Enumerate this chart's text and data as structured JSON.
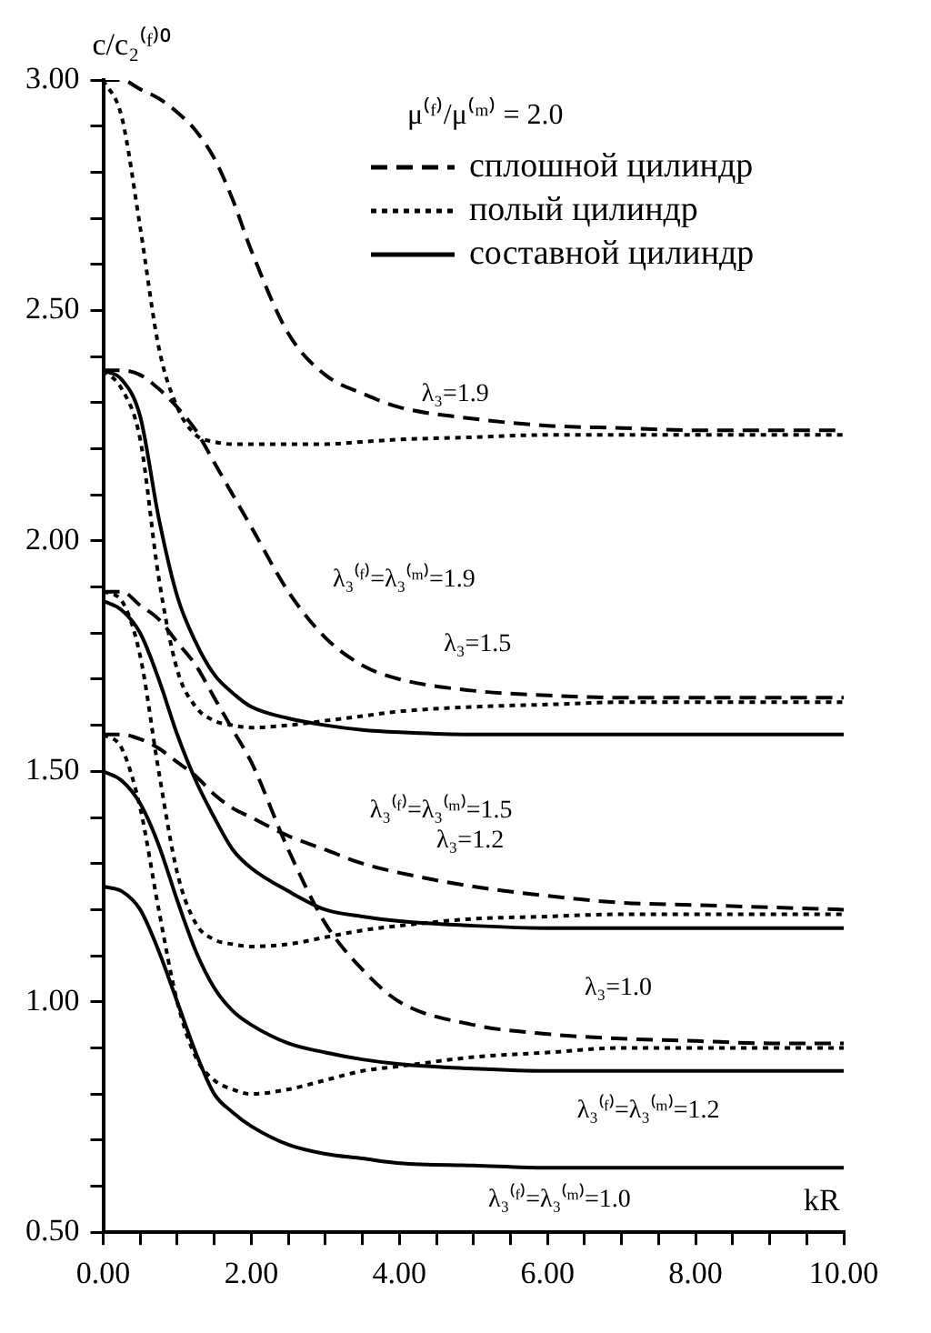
{
  "chart_data": {
    "type": "line",
    "xlabel": "kR",
    "ylabel": "c/c₂⁽ᶠ⁾⁰",
    "legend_title": "μ⁽ᶠ⁾/μ⁽ᵐ⁾ = 2.0",
    "legend": "top right",
    "grid": false,
    "marker": "none",
    "x": [
      0,
      0.25,
      0.5,
      0.75,
      1,
      1.25,
      1.5,
      1.75,
      2,
      2.5,
      3,
      3.5,
      4,
      5,
      6,
      7,
      8,
      9,
      10
    ],
    "xlim": [
      0,
      10
    ],
    "ylim": [
      0.5,
      3
    ],
    "xticks": [
      {
        "value": 0,
        "label": "0.00"
      },
      {
        "value": 0.5,
        "label": null
      },
      {
        "value": 1,
        "label": null
      },
      {
        "value": 1.5,
        "label": null
      },
      {
        "value": 2,
        "label": "2.00"
      },
      {
        "value": 2.5,
        "label": null
      },
      {
        "value": 3,
        "label": null
      },
      {
        "value": 3.5,
        "label": null
      },
      {
        "value": 4,
        "label": "4.00"
      },
      {
        "value": 4.5,
        "label": null
      },
      {
        "value": 5,
        "label": null
      },
      {
        "value": 5.5,
        "label": null
      },
      {
        "value": 6,
        "label": "6.00"
      },
      {
        "value": 6.5,
        "label": null
      },
      {
        "value": 7,
        "label": null
      },
      {
        "value": 7.5,
        "label": null
      },
      {
        "value": 8,
        "label": "8.00"
      },
      {
        "value": 8.5,
        "label": null
      },
      {
        "value": 9,
        "label": null
      },
      {
        "value": 9.5,
        "label": null
      },
      {
        "value": 10,
        "label": "10.00"
      }
    ],
    "yticks": [
      {
        "value": 0.5,
        "label": "0.50"
      },
      {
        "value": 0.6,
        "label": null
      },
      {
        "value": 0.7,
        "label": null
      },
      {
        "value": 0.8,
        "label": null
      },
      {
        "value": 0.9,
        "label": null
      },
      {
        "value": 1,
        "label": "1.00"
      },
      {
        "value": 1.1,
        "label": null
      },
      {
        "value": 1.2,
        "label": null
      },
      {
        "value": 1.3,
        "label": null
      },
      {
        "value": 1.4,
        "label": null
      },
      {
        "value": 1.5,
        "label": "1.50"
      },
      {
        "value": 1.6,
        "label": null
      },
      {
        "value": 1.7,
        "label": null
      },
      {
        "value": 1.8,
        "label": null
      },
      {
        "value": 1.9,
        "label": null
      },
      {
        "value": 2,
        "label": "2.00"
      },
      {
        "value": 2.1,
        "label": null
      },
      {
        "value": 2.2,
        "label": null
      },
      {
        "value": 2.3,
        "label": null
      },
      {
        "value": 2.4,
        "label": null
      },
      {
        "value": 2.5,
        "label": "2.50"
      },
      {
        "value": 2.6,
        "label": null
      },
      {
        "value": 2.7,
        "label": null
      },
      {
        "value": 2.8,
        "label": null
      },
      {
        "value": 2.9,
        "label": null
      },
      {
        "value": 3,
        "label": "3.00"
      }
    ],
    "series": [
      {
        "name": "сплошной цилиндр",
        "color": "#000000",
        "line_style": "dashed",
        "values": [
          3.0,
          3.0,
          2.98,
          2.96,
          2.93,
          2.89,
          2.83,
          2.74,
          2.63,
          2.45,
          2.36,
          2.32,
          2.29,
          2.265,
          2.25,
          2.245,
          2.24,
          2.24,
          2.24
        ]
      },
      {
        "name": "полый цилиндр",
        "color": "#000000",
        "line_style": "dotted",
        "values": [
          3.0,
          2.92,
          2.68,
          2.42,
          2.29,
          2.23,
          2.215,
          2.21,
          2.21,
          2.21,
          2.21,
          2.215,
          2.22,
          2.225,
          2.23,
          2.23,
          2.23,
          2.23,
          2.23
        ]
      },
      {
        "name": "составной цилиндр",
        "color": "#000000",
        "line_style": "solid",
        "values": [
          2.37,
          2.35,
          2.27,
          2.05,
          1.88,
          1.78,
          1.71,
          1.67,
          1.64,
          1.615,
          1.6,
          1.59,
          1.585,
          1.58,
          1.58,
          1.58,
          1.58,
          1.58,
          1.58
        ]
      },
      {
        "color": "#000000",
        "line_style": "dashed",
        "values": [
          2.37,
          2.37,
          2.36,
          2.33,
          2.29,
          2.24,
          2.17,
          2.1,
          2.03,
          1.89,
          1.79,
          1.73,
          1.7,
          1.675,
          1.665,
          1.66,
          1.66,
          1.66,
          1.66
        ]
      },
      {
        "color": "#000000",
        "line_style": "dotted",
        "values": [
          2.37,
          2.33,
          2.22,
          1.92,
          1.72,
          1.64,
          1.61,
          1.6,
          1.595,
          1.6,
          1.61,
          1.62,
          1.63,
          1.64,
          1.645,
          1.65,
          1.65,
          1.65,
          1.65
        ]
      },
      {
        "color": "#000000",
        "line_style": "solid",
        "values": [
          1.87,
          1.85,
          1.8,
          1.7,
          1.58,
          1.48,
          1.4,
          1.33,
          1.29,
          1.24,
          1.2,
          1.185,
          1.175,
          1.165,
          1.16,
          1.16,
          1.16,
          1.16,
          1.16
        ]
      },
      {
        "color": "#000000",
        "line_style": "dashed",
        "values": [
          1.89,
          1.89,
          1.86,
          1.83,
          1.78,
          1.73,
          1.66,
          1.59,
          1.52,
          1.33,
          1.17,
          1.07,
          1.0,
          0.95,
          0.93,
          0.92,
          0.915,
          0.91,
          0.91
        ]
      },
      {
        "color": "#000000",
        "line_style": "dotted",
        "values": [
          1.89,
          1.87,
          1.75,
          1.5,
          1.28,
          1.17,
          1.135,
          1.125,
          1.12,
          1.125,
          1.14,
          1.155,
          1.165,
          1.18,
          1.185,
          1.19,
          1.19,
          1.19,
          1.19
        ]
      },
      {
        "color": "#000000",
        "line_style": "solid",
        "values": [
          1.5,
          1.48,
          1.43,
          1.34,
          1.22,
          1.11,
          1.03,
          0.98,
          0.95,
          0.91,
          0.89,
          0.875,
          0.865,
          0.855,
          0.85,
          0.85,
          0.85,
          0.85,
          0.85
        ]
      },
      {
        "color": "#000000",
        "line_style": "dashed",
        "values": [
          1.58,
          1.58,
          1.57,
          1.55,
          1.52,
          1.49,
          1.45,
          1.42,
          1.4,
          1.36,
          1.33,
          1.3,
          1.28,
          1.25,
          1.23,
          1.215,
          1.21,
          1.205,
          1.2
        ]
      },
      {
        "color": "#000000",
        "line_style": "dotted",
        "values": [
          1.58,
          1.55,
          1.42,
          1.2,
          1.0,
          0.88,
          0.83,
          0.81,
          0.8,
          0.81,
          0.83,
          0.85,
          0.86,
          0.88,
          0.89,
          0.9,
          0.9,
          0.9,
          0.9
        ]
      },
      {
        "color": "#000000",
        "line_style": "solid",
        "values": [
          1.25,
          1.24,
          1.2,
          1.11,
          1.0,
          0.89,
          0.8,
          0.76,
          0.73,
          0.69,
          0.67,
          0.66,
          0.65,
          0.645,
          0.64,
          0.64,
          0.64,
          0.64,
          0.64
        ]
      }
    ],
    "annotations": [
      "λ₃=1.9",
      "λ₃⁽ᶠ⁾=λ₃⁽ᵐ⁾=1.9",
      "λ₃=1.5",
      "λ₃⁽ᶠ⁾=λ₃⁽ᵐ⁾=1.5",
      "λ₃=1.2",
      "λ₃=1.0",
      "λ₃⁽ᶠ⁾=λ₃⁽ᵐ⁾=1.2",
      "λ₃⁽ᶠ⁾=λ₃⁽ᵐ⁾=1.0"
    ]
  }
}
